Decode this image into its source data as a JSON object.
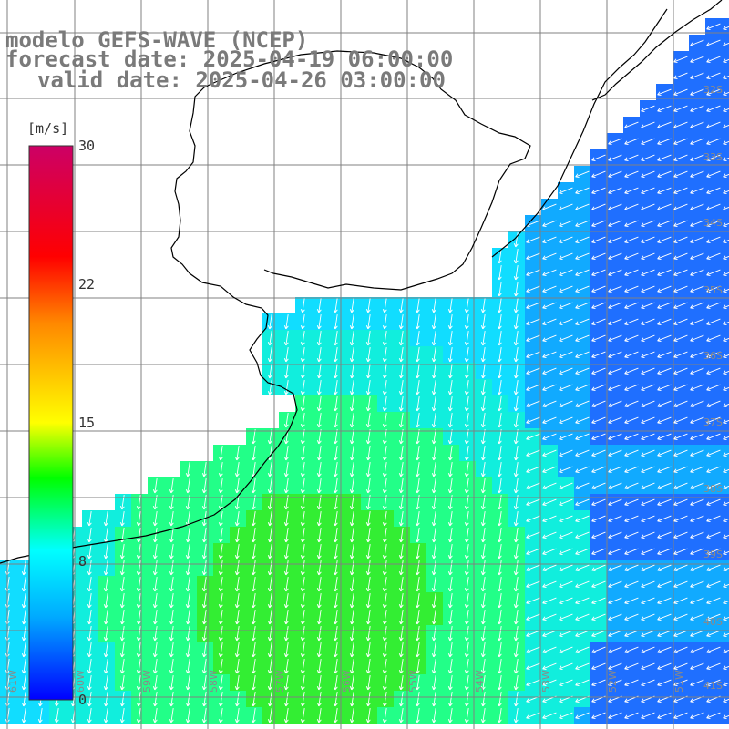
{
  "title": {
    "model": "modelo GEFS-WAVE (NCEP)",
    "forecast_date": "forecast date: 2025-04-19 06:00:00",
    "valid_date": "valid date: 2025-04-26 03:00:00"
  },
  "colorbar": {
    "unit": "[m/s]",
    "ticks": [
      "30",
      "22",
      "15",
      "8",
      "0"
    ],
    "stops": [
      "#0000ff",
      "#00aaff",
      "#00ffff",
      "#00ff00",
      "#ffff00",
      "#ff8800",
      "#ff0000",
      "#cc0066"
    ]
  },
  "grid": {
    "lat_labels": [
      "32S",
      "33S",
      "34S",
      "35S",
      "36S",
      "37S",
      "38S",
      "39S",
      "40S",
      "41S"
    ],
    "lon_labels": [
      "61W",
      "60W",
      "59W",
      "58W",
      "57W",
      "56W",
      "55W",
      "54W",
      "53W",
      "52W",
      "51W"
    ]
  },
  "colors": {
    "land": "#ffffff",
    "coast": "#000000",
    "grid": "#808080",
    "arrows": "#ffffff",
    "title": "#7a7a7a"
  }
}
